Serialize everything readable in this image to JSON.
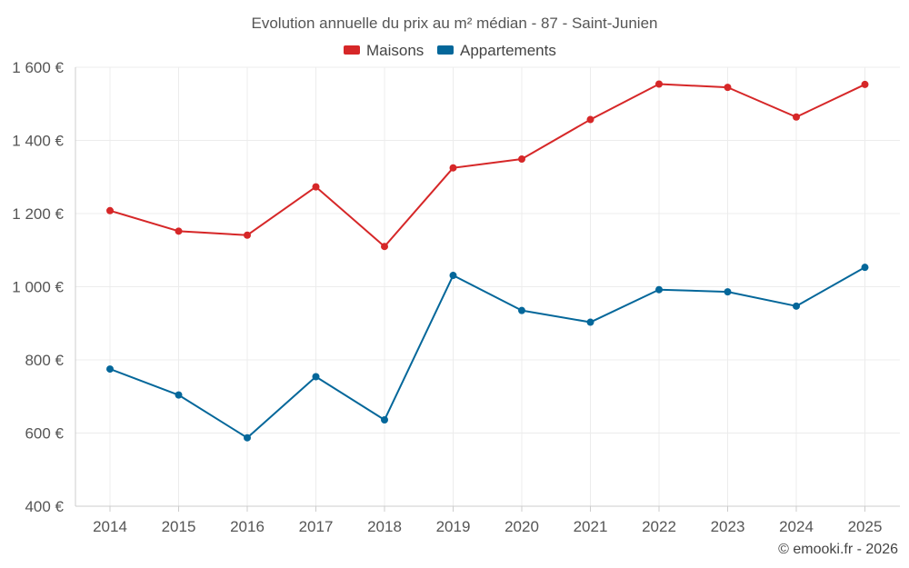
{
  "chart_data": {
    "type": "line",
    "title": "Evolution annuelle du prix au m² médian - 87 - Saint-Junien",
    "categories": [
      "2014",
      "2015",
      "2016",
      "2017",
      "2018",
      "2019",
      "2020",
      "2021",
      "2022",
      "2023",
      "2024",
      "2025"
    ],
    "series": [
      {
        "name": "Maisons",
        "color": "#d62728",
        "values": [
          1208,
          1152,
          1141,
          1273,
          1110,
          1325,
          1349,
          1457,
          1554,
          1545,
          1464,
          1553
        ]
      },
      {
        "name": "Appartements",
        "color": "#04679a",
        "values": [
          775,
          704,
          587,
          754,
          636,
          1031,
          935,
          903,
          992,
          986,
          947,
          1053
        ]
      }
    ],
    "ylim": [
      400,
      1600
    ],
    "yticks": [
      400,
      600,
      800,
      1000,
      1200,
      1400,
      1600
    ],
    "ytick_labels": [
      "400 €",
      "600 €",
      "800 €",
      "1 000 €",
      "1 200 €",
      "1 400 €",
      "1 600 €"
    ],
    "xlabel": "",
    "ylabel": "",
    "grid": true,
    "legend_position": "top-center"
  },
  "credit": "© emooki.fr - 2026"
}
